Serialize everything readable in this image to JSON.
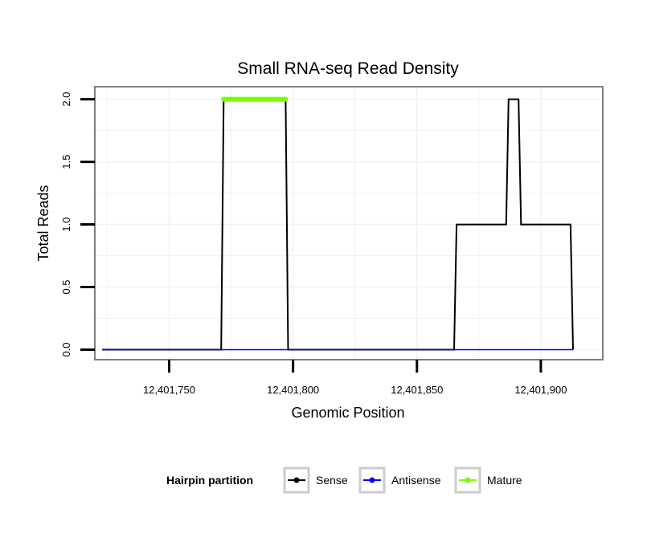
{
  "chart_data": {
    "type": "line",
    "title": "Small RNA-seq Read Density",
    "xlabel": "Genomic Position",
    "ylabel": "Total Reads",
    "xlim": [
      12401720,
      12401925
    ],
    "ylim": [
      -0.08,
      2.1
    ],
    "xticks": [
      12401750,
      12401800,
      12401850,
      12401900
    ],
    "xtick_labels": [
      "12,401,750",
      "12,401,800",
      "12,401,850",
      "12,401,900"
    ],
    "yticks": [
      0.0,
      0.5,
      1.0,
      1.5,
      2.0
    ],
    "ytick_labels": [
      "0.0",
      "0.5",
      "1.0",
      "1.5",
      "2.0"
    ],
    "grid": true,
    "legend": {
      "position": "bottom",
      "title": "Hairpin partition",
      "entries": [
        {
          "label": "Sense",
          "color": "#000000"
        },
        {
          "label": "Antisense",
          "color": "#0000ff"
        },
        {
          "label": "Mature",
          "color": "#7cfc00"
        }
      ]
    },
    "series": [
      {
        "name": "Sense",
        "color": "#000000",
        "x": [
          12401723,
          12401771,
          12401772,
          12401797,
          12401798,
          12401865,
          12401866,
          12401886,
          12401887,
          12401891,
          12401892,
          12401912,
          12401913
        ],
        "y": [
          0,
          0,
          2,
          2,
          0,
          0,
          1,
          1,
          2,
          2,
          1,
          1,
          0
        ]
      },
      {
        "name": "Antisense",
        "color": "#0000ff",
        "x": [
          12401723,
          12401913
        ],
        "y": [
          0,
          0
        ]
      },
      {
        "name": "Mature",
        "color": "#7cfc00",
        "x": [
          12401772,
          12401797
        ],
        "y": [
          2,
          2
        ]
      }
    ]
  }
}
